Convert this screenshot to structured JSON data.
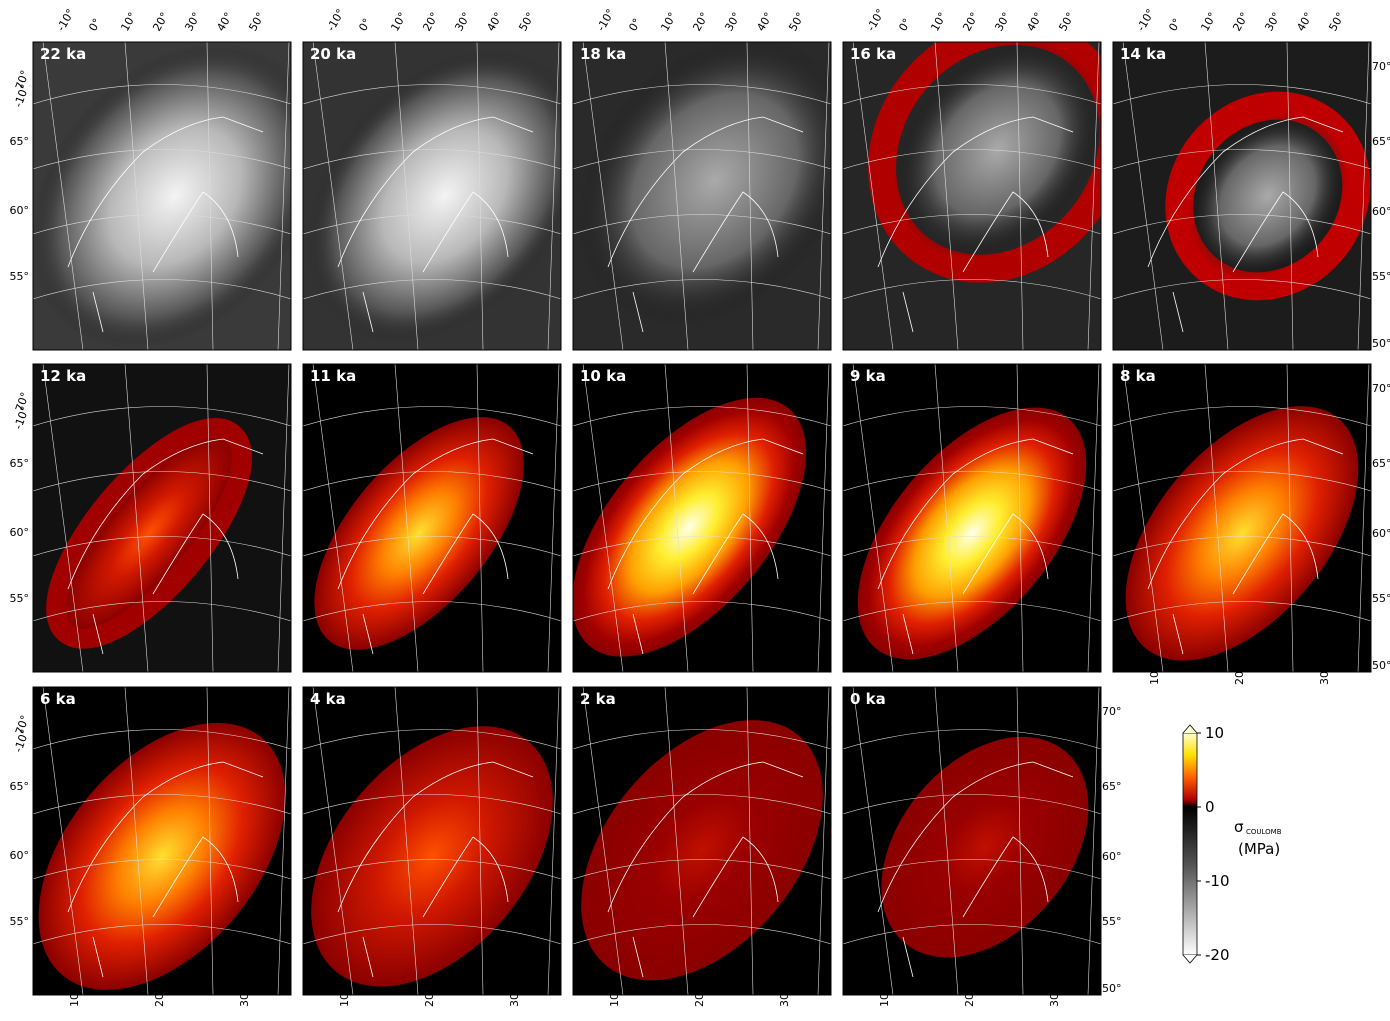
{
  "panels": [
    "22 ka",
    "20 ka",
    "18 ka",
    "16 ka",
    "14 ka",
    "12 ka",
    "11 ka",
    "10 ka",
    "9 ka",
    "8 ka",
    "6 ka",
    "4 ka",
    "2 ka",
    "0 ka"
  ],
  "top_longitude_labels": [
    "-10°",
    "0°",
    "10°",
    "20°",
    "30°",
    "40°",
    "50°"
  ],
  "left_latitude_labels": [
    "70°",
    "-10°",
    "65°",
    "60°",
    "55°"
  ],
  "right_latitude_labels": [
    "70°",
    "65°",
    "60°",
    "55°",
    "50°"
  ],
  "bottom_longitude_labels": [
    "10°",
    "20°",
    "30°"
  ],
  "colorbar": {
    "symbol": "σ",
    "subscript": "COULOMB",
    "units": "(MPa)",
    "lim": [
      -20,
      10
    ],
    "ticks": [
      10,
      0,
      -10,
      -20
    ]
  }
}
